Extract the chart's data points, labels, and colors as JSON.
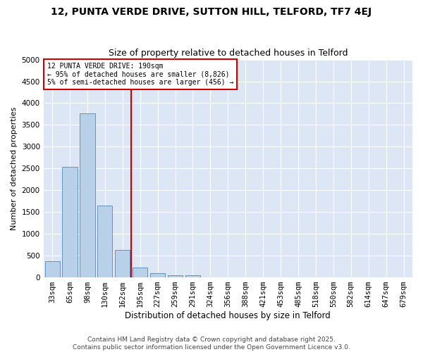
{
  "title1": "12, PUNTA VERDE DRIVE, SUTTON HILL, TELFORD, TF7 4EJ",
  "title2": "Size of property relative to detached houses in Telford",
  "xlabel": "Distribution of detached houses by size in Telford",
  "ylabel": "Number of detached properties",
  "categories": [
    "33sqm",
    "65sqm",
    "98sqm",
    "130sqm",
    "162sqm",
    "195sqm",
    "227sqm",
    "259sqm",
    "291sqm",
    "324sqm",
    "356sqm",
    "388sqm",
    "421sqm",
    "453sqm",
    "485sqm",
    "518sqm",
    "550sqm",
    "582sqm",
    "614sqm",
    "647sqm",
    "679sqm"
  ],
  "values": [
    370,
    2530,
    3760,
    1650,
    630,
    220,
    100,
    50,
    50,
    0,
    0,
    0,
    0,
    0,
    0,
    0,
    0,
    0,
    0,
    0,
    0
  ],
  "bar_color": "#b8d0e8",
  "bar_edge_color": "#5588bb",
  "vline_color": "#cc0000",
  "annotation_text": "12 PUNTA VERDE DRIVE: 190sqm\n← 95% of detached houses are smaller (8,826)\n5% of semi-detached houses are larger (456) →",
  "annotation_box_color": "#ffffff",
  "annotation_box_edge": "#cc0000",
  "ylim": [
    0,
    5000
  ],
  "yticks": [
    0,
    500,
    1000,
    1500,
    2000,
    2500,
    3000,
    3500,
    4000,
    4500,
    5000
  ],
  "plot_bg_color": "#dce6f5",
  "fig_bg_color": "#ffffff",
  "grid_color": "#ffffff",
  "footer_line1": "Contains HM Land Registry data © Crown copyright and database right 2025.",
  "footer_line2": "Contains public sector information licensed under the Open Government Licence v3.0.",
  "title1_fontsize": 10,
  "title2_fontsize": 9,
  "tick_fontsize": 7.5,
  "ylabel_fontsize": 8,
  "xlabel_fontsize": 8.5,
  "footer_fontsize": 6.5,
  "annotation_fontsize": 7
}
